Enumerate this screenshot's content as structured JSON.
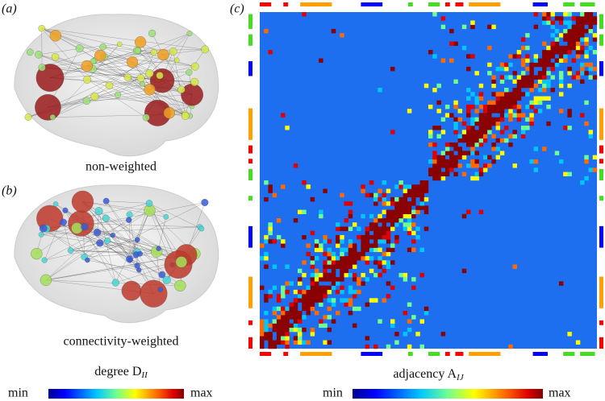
{
  "panels": {
    "a": {
      "label": "(a)",
      "caption": "non-weighted"
    },
    "b": {
      "label": "(b)",
      "caption": "connectivity-weighted"
    },
    "c": {
      "label": "(c)"
    }
  },
  "colorbars": {
    "degree": {
      "title": "degree D",
      "subscript": "II",
      "min": "min",
      "max": "max"
    },
    "adjacency": {
      "title": "adjacency A",
      "subscript": "IJ",
      "min": "min",
      "max": "max"
    }
  }
}
